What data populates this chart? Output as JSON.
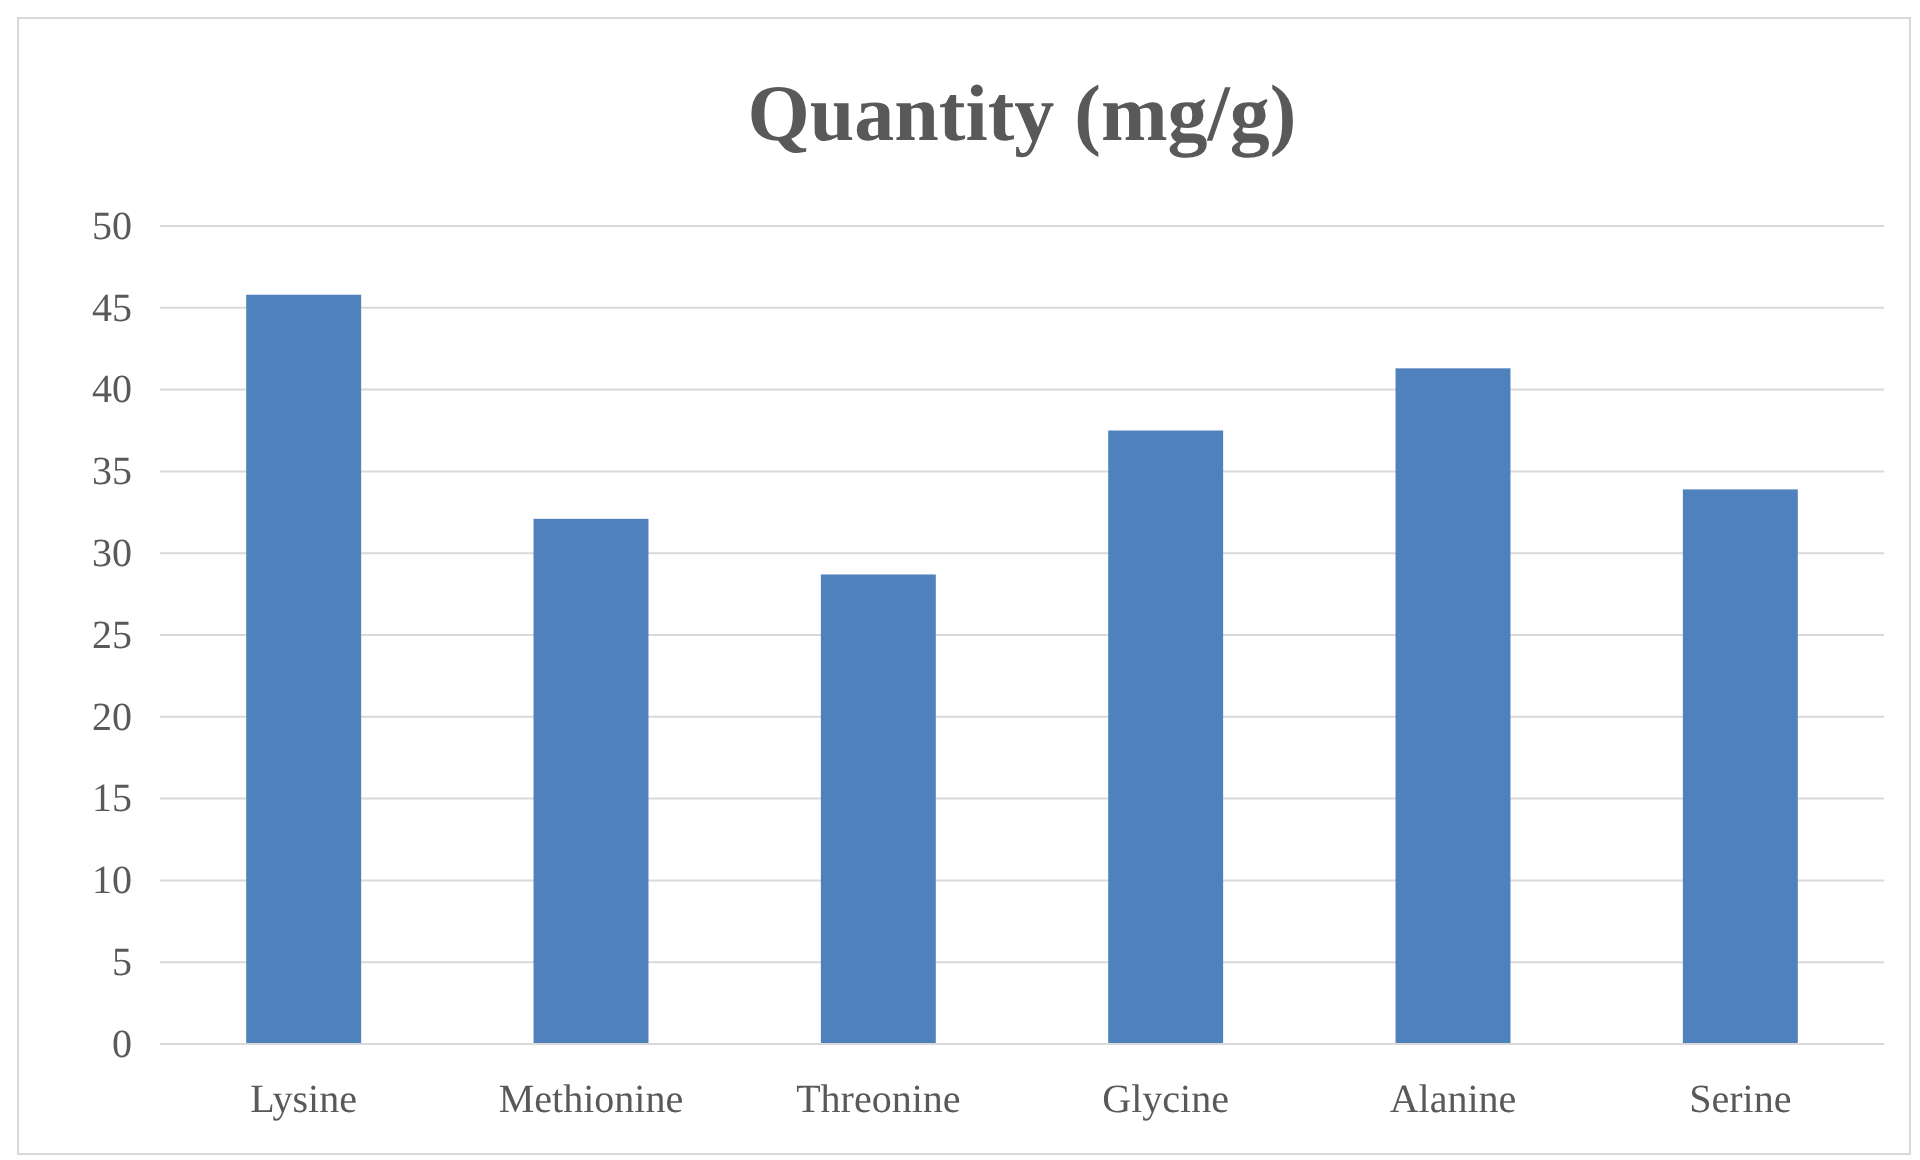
{
  "chart_data": {
    "type": "bar",
    "title": "Quantity (mg/g)",
    "categories": [
      "Lysine",
      "Methionine",
      "Threonine",
      "Glycine",
      "Alanine",
      "Serine"
    ],
    "values": [
      45.8,
      32.1,
      28.7,
      37.5,
      41.3,
      33.9
    ],
    "color": "#4f81bd",
    "ylim": [
      0,
      50
    ],
    "yticks": [
      0,
      5,
      10,
      15,
      20,
      25,
      30,
      35,
      40,
      45,
      50
    ],
    "grid": "y"
  }
}
